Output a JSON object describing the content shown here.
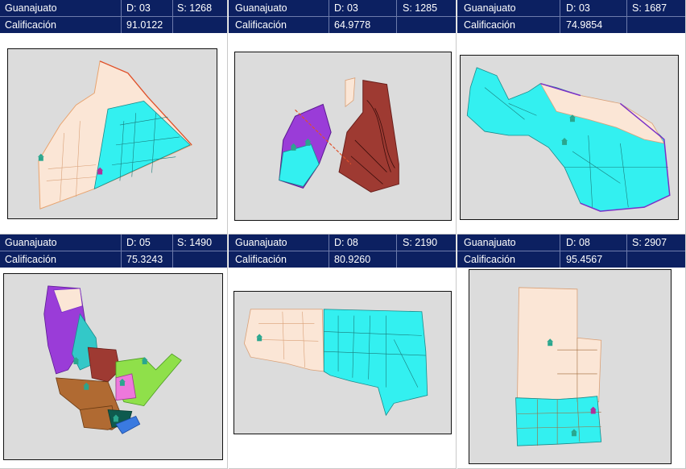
{
  "panels": [
    {
      "state": "Guanajuato",
      "district": "D: 03",
      "section": "S: 1268",
      "score_label": "Calificación",
      "score": "91.0122"
    },
    {
      "state": "Guanajuato",
      "district": "D: 03",
      "section": "S: 1285",
      "score_label": "Calificación",
      "score": "64.9778"
    },
    {
      "state": "Guanajuato",
      "district": "D: 03",
      "section": "S: 1687",
      "score_label": "Calificación",
      "score": "74.9854"
    },
    {
      "state": "Guanajuato",
      "district": "D: 05",
      "section": "S: 1490",
      "score_label": "Calificación",
      "score": "75.3243"
    },
    {
      "state": "Guanajuato",
      "district": "D: 08",
      "section": "S: 2190",
      "score_label": "Calificación",
      "score": "80.9260"
    },
    {
      "state": "Guanajuato",
      "district": "D: 08",
      "section": "S: 2907",
      "score_label": "Calificación",
      "score": "95.4567"
    }
  ],
  "colors": {
    "header_bg": "#0c2061",
    "header_text": "#ffffff",
    "map_bg": "#dcdcdc",
    "zone_cyan": "#33f0f0",
    "zone_beige": "#fbe6d6",
    "zone_purple": "#9a3cd8",
    "zone_brown": "#9e3a32",
    "zone_green": "#8fe04a",
    "zone_orange_brown": "#b06a32"
  },
  "icons": [
    "school-marker-icon"
  ]
}
